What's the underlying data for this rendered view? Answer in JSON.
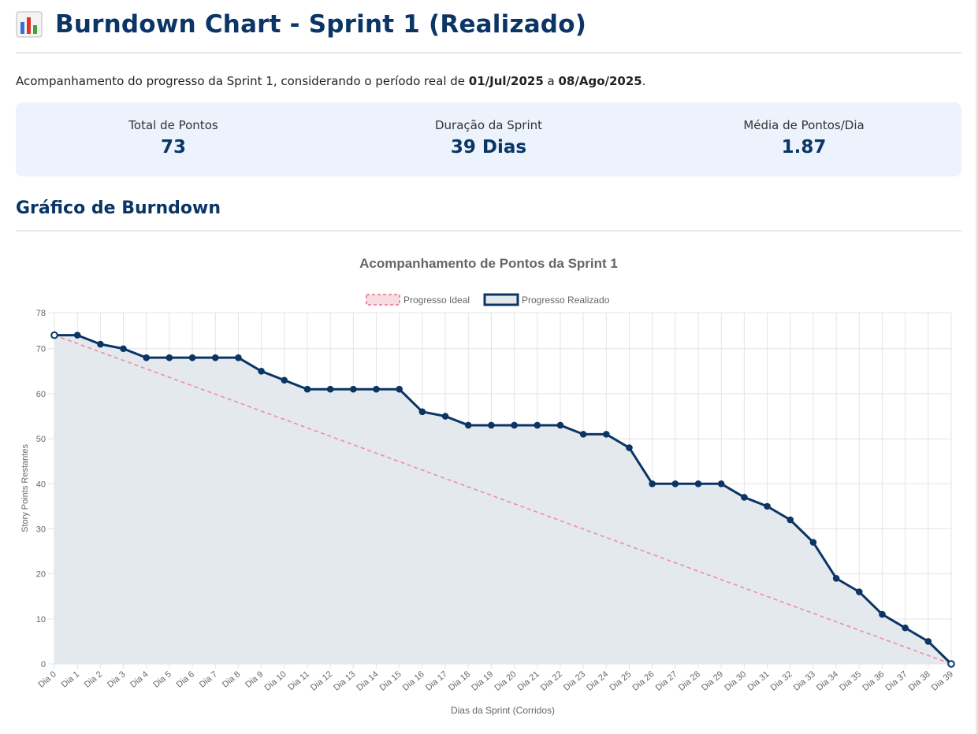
{
  "header": {
    "title": "Burndown Chart - Sprint 1 (Realizado)",
    "icon": "bar-chart-icon"
  },
  "intro": {
    "prefix": "Acompanhamento do progresso da Sprint 1, considerando o período real de ",
    "start": "01/Jul/2025",
    "middle": " a ",
    "end": "08/Ago/2025",
    "suffix": "."
  },
  "stats": [
    {
      "label": "Total de Pontos",
      "value": "73"
    },
    {
      "label": "Duração da Sprint",
      "value": "39 Dias"
    },
    {
      "label": "Média de Pontos/Dia",
      "value": "1.87"
    }
  ],
  "section_title": "Gráfico de Burndown",
  "colors": {
    "ideal": "#f08ca0",
    "real": "#0b3565",
    "fill": "#e3e8ed",
    "accent": "#0b3565"
  },
  "chart_data": {
    "type": "line",
    "title": "Acompanhamento de Pontos da Sprint 1",
    "xlabel": "Dias da Sprint (Corridos)",
    "ylabel": "Story Points Restantes",
    "ylim": [
      0,
      78
    ],
    "yticks": [
      0,
      10,
      20,
      30,
      40,
      50,
      60,
      70,
      78
    ],
    "grid": true,
    "legend_position": "top-center",
    "categories": [
      "Dia 0",
      "Dia 1",
      "Dia 2",
      "Dia 3",
      "Dia 4",
      "Dia 5",
      "Dia 6",
      "Dia 7",
      "Dia 8",
      "Dia 9",
      "Dia 10",
      "Dia 11",
      "Dia 12",
      "Dia 13",
      "Dia 14",
      "Dia 15",
      "Dia 16",
      "Dia 17",
      "Dia 18",
      "Dia 19",
      "Dia 20",
      "Dia 21",
      "Dia 22",
      "Dia 23",
      "Dia 24",
      "Dia 25",
      "Dia 26",
      "Dia 27",
      "Dia 28",
      "Dia 29",
      "Dia 30",
      "Dia 31",
      "Dia 32",
      "Dia 33",
      "Dia 34",
      "Dia 35",
      "Dia 36",
      "Dia 37",
      "Dia 38",
      "Dia 39"
    ],
    "series": [
      {
        "name": "Progresso Ideal",
        "style": "dashed",
        "start": 73,
        "end": 0
      },
      {
        "name": "Progresso Realizado",
        "style": "solid-filled",
        "values": [
          73,
          73,
          71,
          70,
          68,
          68,
          68,
          68,
          68,
          65,
          63,
          61,
          61,
          61,
          61,
          61,
          56,
          55,
          53,
          53,
          53,
          53,
          53,
          51,
          51,
          48,
          40,
          40,
          40,
          40,
          37,
          35,
          32,
          27,
          19,
          16,
          11,
          8,
          5,
          0
        ]
      }
    ]
  }
}
